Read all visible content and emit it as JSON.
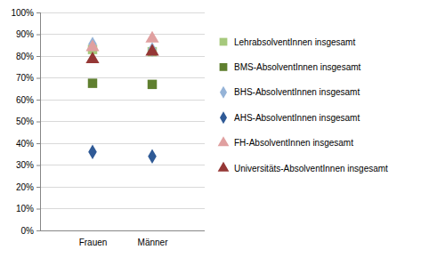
{
  "chart_data": {
    "type": "scatter",
    "categories": [
      "Frauen",
      "Männer"
    ],
    "ylim": [
      0,
      100
    ],
    "yticks": [
      {
        "value": 0,
        "label": "0%"
      },
      {
        "value": 10,
        "label": "10%"
      },
      {
        "value": 20,
        "label": "20%"
      },
      {
        "value": 30,
        "label": "30%"
      },
      {
        "value": 40,
        "label": "40%"
      },
      {
        "value": 50,
        "label": "50%"
      },
      {
        "value": 60,
        "label": "60%"
      },
      {
        "value": 70,
        "label": "70%"
      },
      {
        "value": 80,
        "label": "80%"
      },
      {
        "value": 90,
        "label": "90%"
      },
      {
        "value": 100,
        "label": "100%"
      }
    ],
    "grid": true,
    "legend": "right",
    "series": [
      {
        "name": "LehrabsolventInnen insgesamt",
        "color": "#a6c97c",
        "marker": "square",
        "values": [
          83,
          82
        ]
      },
      {
        "name": "BMS-AbsolventInnen insgesamt",
        "color": "#5f7f2f",
        "marker": "square",
        "values": [
          67.5,
          67
        ]
      },
      {
        "name": "BHS-AbsolventInnen insgesamt",
        "color": "#95b3d7",
        "marker": "diamond",
        "values": [
          85.5,
          83
        ]
      },
      {
        "name": "AHS-AbsolventInnen insgesamt",
        "color": "#2f5a96",
        "marker": "diamond",
        "values": [
          36,
          34
        ]
      },
      {
        "name": "FH-AbsolventInnen insgesamt",
        "color": "#e0a0a0",
        "marker": "triangle",
        "values": [
          84,
          88
        ]
      },
      {
        "name": "Universitäts-AbsolventInnen insgesamt",
        "color": "#953735",
        "marker": "triangle",
        "values": [
          78.5,
          82
        ]
      }
    ]
  }
}
